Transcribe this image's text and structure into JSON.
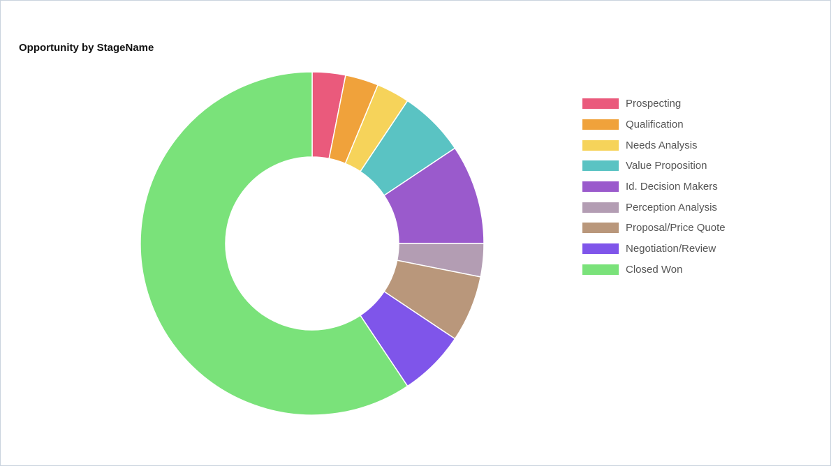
{
  "chart_data": {
    "type": "pie",
    "title": "Opportunity by StageName",
    "donut": true,
    "legend_position": "right",
    "categories": [
      "Prospecting",
      "Qualification",
      "Needs Analysis",
      "Value Proposition",
      "Id. Decision Makers",
      "Perception Analysis",
      "Proposal/Price Quote",
      "Negotiation/Review",
      "Closed Won"
    ],
    "values": [
      1,
      1,
      1,
      2,
      3,
      1,
      2,
      2,
      19
    ],
    "colors": [
      "#ea5a7c",
      "#f0a23b",
      "#f6d35a",
      "#5ac3c3",
      "#9a5acc",
      "#b39db3",
      "#b9977b",
      "#7f55ea",
      "#7ae27a"
    ]
  }
}
